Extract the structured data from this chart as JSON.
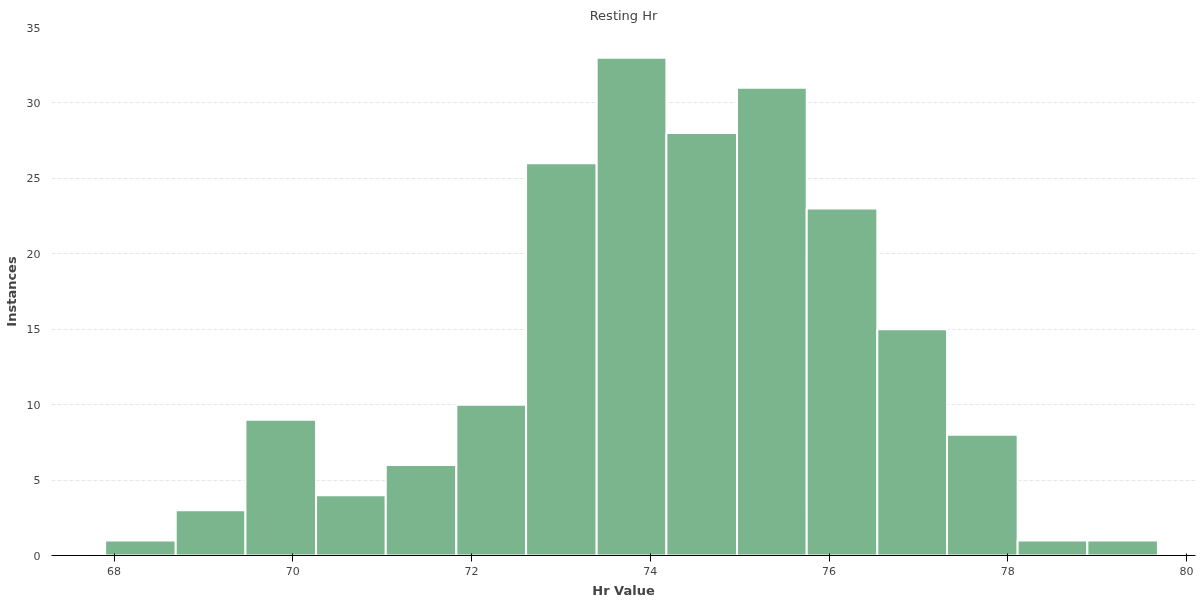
{
  "chart_data": {
    "type": "histogram",
    "title": "Resting Hr",
    "xlabel": "Hr Value",
    "ylabel": "Instances",
    "bins": [
      67.9,
      68.69,
      69.47,
      70.26,
      71.04,
      71.83,
      72.61,
      73.4,
      74.18,
      74.97,
      75.75,
      76.54,
      77.32,
      78.11,
      78.89,
      79.68
    ],
    "values": [
      1,
      3,
      9,
      4,
      6,
      10,
      26,
      33,
      28,
      31,
      23,
      15,
      8,
      1,
      1
    ],
    "color": "#7bb58e",
    "xlim": [
      67.3,
      80.1
    ],
    "ylim": [
      0,
      35
    ],
    "xticks": [
      68,
      70,
      72,
      74,
      76,
      78,
      80
    ],
    "yticks": [
      0,
      5,
      10,
      15,
      20,
      25,
      30,
      35
    ],
    "grid": "y"
  }
}
